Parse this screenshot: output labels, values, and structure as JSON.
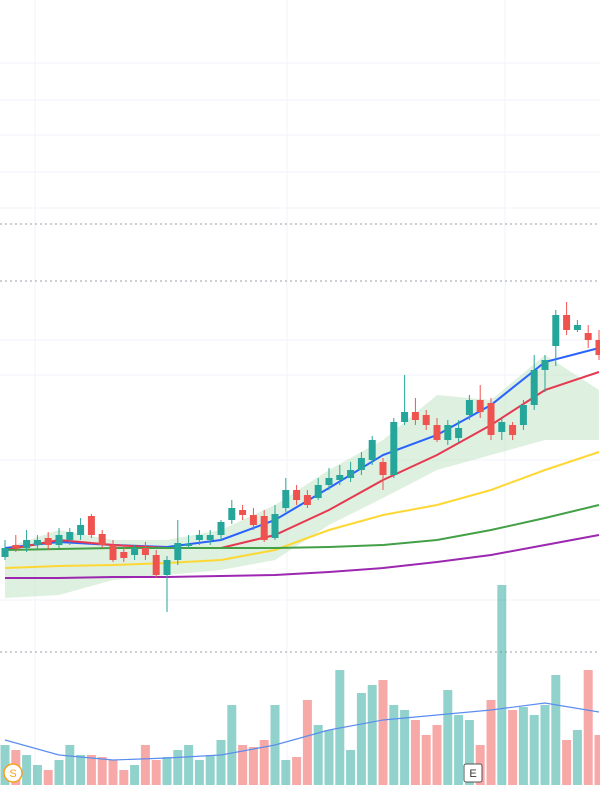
{
  "chart_data": {
    "type": "candlestick",
    "open": [
      243,
      255,
      252,
      255,
      262,
      255,
      260,
      265,
      284,
      266,
      255,
      248,
      245,
      252,
      245,
      225,
      240,
      254,
      260,
      260,
      265,
      280,
      290,
      285,
      284,
      262,
      292,
      310,
      305,
      302,
      315,
      320,
      322,
      330,
      340,
      338,
      325,
      378,
      388,
      385,
      375,
      360,
      362,
      385,
      400,
      397,
      368,
      375,
      375,
      395,
      430,
      454,
      485,
      470,
      467,
      460
    ],
    "high": [
      260,
      265,
      270,
      265,
      268,
      272,
      272,
      282,
      286,
      270,
      260,
      255,
      255,
      258,
      250,
      244,
      280,
      265,
      270,
      270,
      280,
      300,
      295,
      292,
      290,
      295,
      322,
      315,
      310,
      322,
      332,
      335,
      338,
      348,
      364,
      342,
      382,
      425,
      402,
      390,
      382,
      380,
      380,
      405,
      415,
      402,
      382,
      378,
      400,
      445,
      445,
      490,
      498,
      480,
      475,
      470
    ],
    "low": [
      240,
      248,
      248,
      250,
      250,
      252,
      255,
      260,
      262,
      252,
      238,
      238,
      240,
      240,
      222,
      188,
      235,
      252,
      255,
      255,
      260,
      276,
      280,
      270,
      258,
      260,
      288,
      295,
      292,
      300,
      310,
      315,
      318,
      325,
      335,
      310,
      322,
      375,
      375,
      370,
      358,
      355,
      358,
      380,
      382,
      360,
      360,
      360,
      370,
      390,
      408,
      434,
      465,
      468,
      452,
      440
    ],
    "close": [
      252,
      252,
      260,
      260,
      255,
      265,
      268,
      275,
      265,
      255,
      240,
      242,
      252,
      245,
      225,
      240,
      257,
      256,
      265,
      265,
      278,
      292,
      285,
      275,
      260,
      286,
      310,
      300,
      295,
      315,
      322,
      325,
      330,
      342,
      360,
      325,
      378,
      388,
      380,
      375,
      360,
      375,
      372,
      400,
      388,
      365,
      378,
      365,
      395,
      430,
      440,
      485,
      470,
      475,
      460,
      445
    ],
    "up_color": "#26a69a",
    "down_color": "#ef5350",
    "ylim": [
      150,
      800
    ],
    "lines": [
      {
        "color": "#2962ff",
        "x": [
          0,
          5,
          10,
          15,
          20,
          25,
          30,
          35,
          40,
          45,
          50,
          55
        ],
        "values": [
          252,
          258,
          255,
          253,
          260,
          280,
          312,
          345,
          365,
          395,
          438,
          452
        ]
      },
      {
        "color": "#e53950",
        "x": [
          0,
          5,
          10,
          15,
          20,
          25,
          30,
          35,
          40,
          45,
          50,
          55
        ],
        "values": [
          250,
          260,
          255,
          252,
          252,
          265,
          290,
          320,
          345,
          375,
          410,
          428
        ]
      },
      {
        "color": "#fdd835",
        "x": [
          0,
          5,
          10,
          15,
          20,
          25,
          30,
          35,
          40,
          45,
          50,
          55
        ],
        "values": [
          232,
          234,
          235,
          237,
          240,
          250,
          270,
          285,
          295,
          310,
          330,
          348
        ]
      },
      {
        "color": "#43a047",
        "x": [
          0,
          5,
          10,
          15,
          20,
          25,
          30,
          35,
          40,
          45,
          50,
          55
        ],
        "values": [
          250,
          251,
          252,
          252,
          252,
          252,
          253,
          255,
          260,
          270,
          282,
          295
        ]
      },
      {
        "color": "#9c27b0",
        "x": [
          0,
          5,
          10,
          15,
          20,
          25,
          30,
          35,
          40,
          45,
          50,
          55
        ],
        "values": [
          222,
          222,
          223,
          223,
          224,
          225,
          228,
          232,
          238,
          245,
          255,
          265
        ]
      }
    ],
    "cloud": {
      "color": "#c8e6c9",
      "x": [
        0,
        5,
        10,
        15,
        20,
        25,
        30,
        35,
        40,
        45,
        50,
        55
      ],
      "upper": [
        252,
        270,
        260,
        260,
        270,
        295,
        330,
        360,
        405,
        400,
        445,
        410
      ],
      "lower": [
        202,
        205,
        220,
        225,
        230,
        240,
        275,
        302,
        330,
        345,
        360,
        360
      ]
    },
    "volume": [
      40,
      35,
      30,
      20,
      15,
      25,
      40,
      30,
      30,
      28,
      25,
      15,
      20,
      40,
      25,
      28,
      35,
      40,
      25,
      30,
      45,
      80,
      40,
      38,
      45,
      80,
      25,
      28,
      85,
      60,
      55,
      115,
      35,
      92,
      100,
      105,
      80,
      75,
      65,
      50,
      60,
      95,
      70,
      65,
      40,
      85,
      200,
      75,
      78,
      70,
      80,
      110,
      45,
      55,
      115,
      50
    ],
    "vlim": [
      0,
      210
    ],
    "volume_ma": {
      "color": "#5b8def",
      "x": [
        0,
        5,
        10,
        15,
        20,
        25,
        30,
        35,
        40,
        45,
        50,
        55
      ],
      "values": [
        45,
        30,
        25,
        27,
        30,
        40,
        55,
        65,
        70,
        75,
        82,
        73
      ]
    },
    "event_labels": [
      "S",
      "E"
    ]
  }
}
